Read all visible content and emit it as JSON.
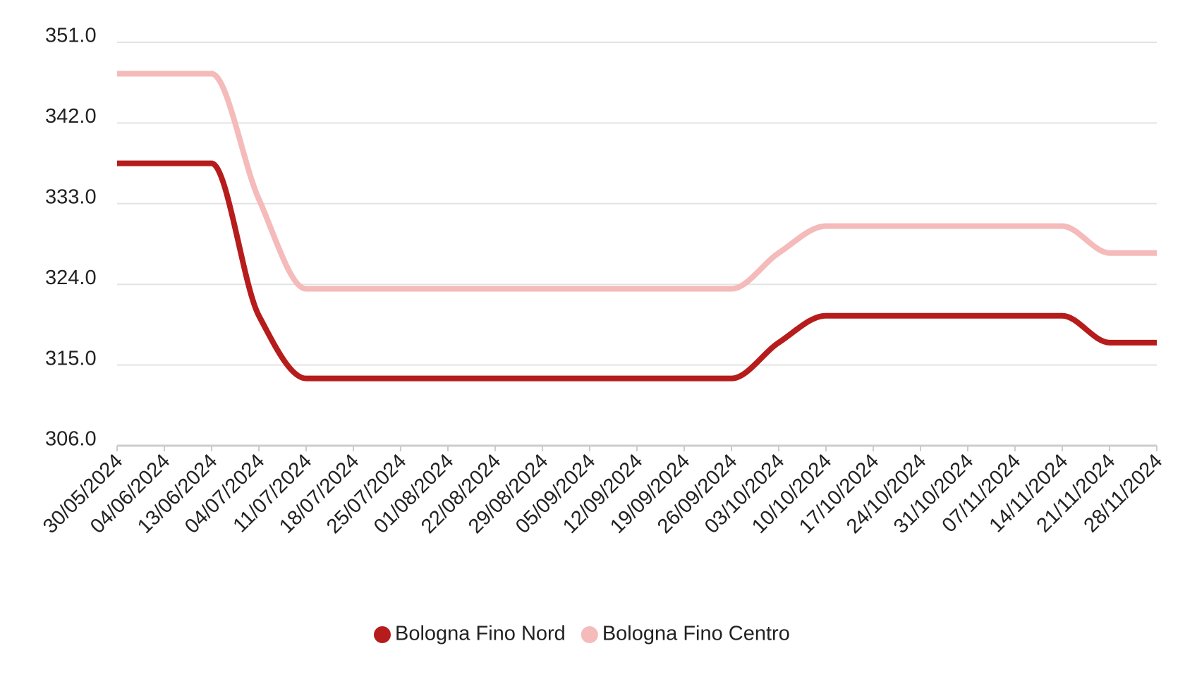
{
  "chart_data": {
    "type": "line",
    "categories": [
      "30/05/2024",
      "04/06/2024",
      "13/06/2024",
      "04/07/2024",
      "11/07/2024",
      "18/07/2024",
      "25/07/2024",
      "01/08/2024",
      "22/08/2024",
      "29/08/2024",
      "05/09/2024",
      "12/09/2024",
      "19/09/2024",
      "26/09/2024",
      "03/10/2024",
      "10/10/2024",
      "17/10/2024",
      "24/10/2024",
      "31/10/2024",
      "07/11/2024",
      "14/11/2024",
      "21/11/2024",
      "28/11/2024"
    ],
    "series": [
      {
        "name": "Bologna Fino Nord",
        "color": "#b71c1c",
        "values": [
          337.5,
          337.5,
          337.5,
          320.5,
          313.5,
          313.5,
          313.5,
          313.5,
          313.5,
          313.5,
          313.5,
          313.5,
          313.5,
          313.5,
          317.5,
          320.5,
          320.5,
          320.5,
          320.5,
          320.5,
          320.5,
          317.5,
          317.5
        ]
      },
      {
        "name": "Bologna Fino Centro",
        "color": "#f5baba",
        "values": [
          347.5,
          347.5,
          347.5,
          333.5,
          323.5,
          323.5,
          323.5,
          323.5,
          323.5,
          323.5,
          323.5,
          323.5,
          323.5,
          323.5,
          327.5,
          330.5,
          330.5,
          330.5,
          330.5,
          330.5,
          330.5,
          327.5,
          327.5
        ]
      }
    ],
    "ylim": [
      306,
      351
    ],
    "yticks": [
      {
        "value": 306,
        "label": "306.0"
      },
      {
        "value": 315,
        "label": "315.0"
      },
      {
        "value": 324,
        "label": "324.0"
      },
      {
        "value": 333,
        "label": "333.0"
      },
      {
        "value": 342,
        "label": "342.0"
      },
      {
        "value": 351,
        "label": "351.0"
      }
    ],
    "grid": true,
    "legend": "bottom"
  }
}
